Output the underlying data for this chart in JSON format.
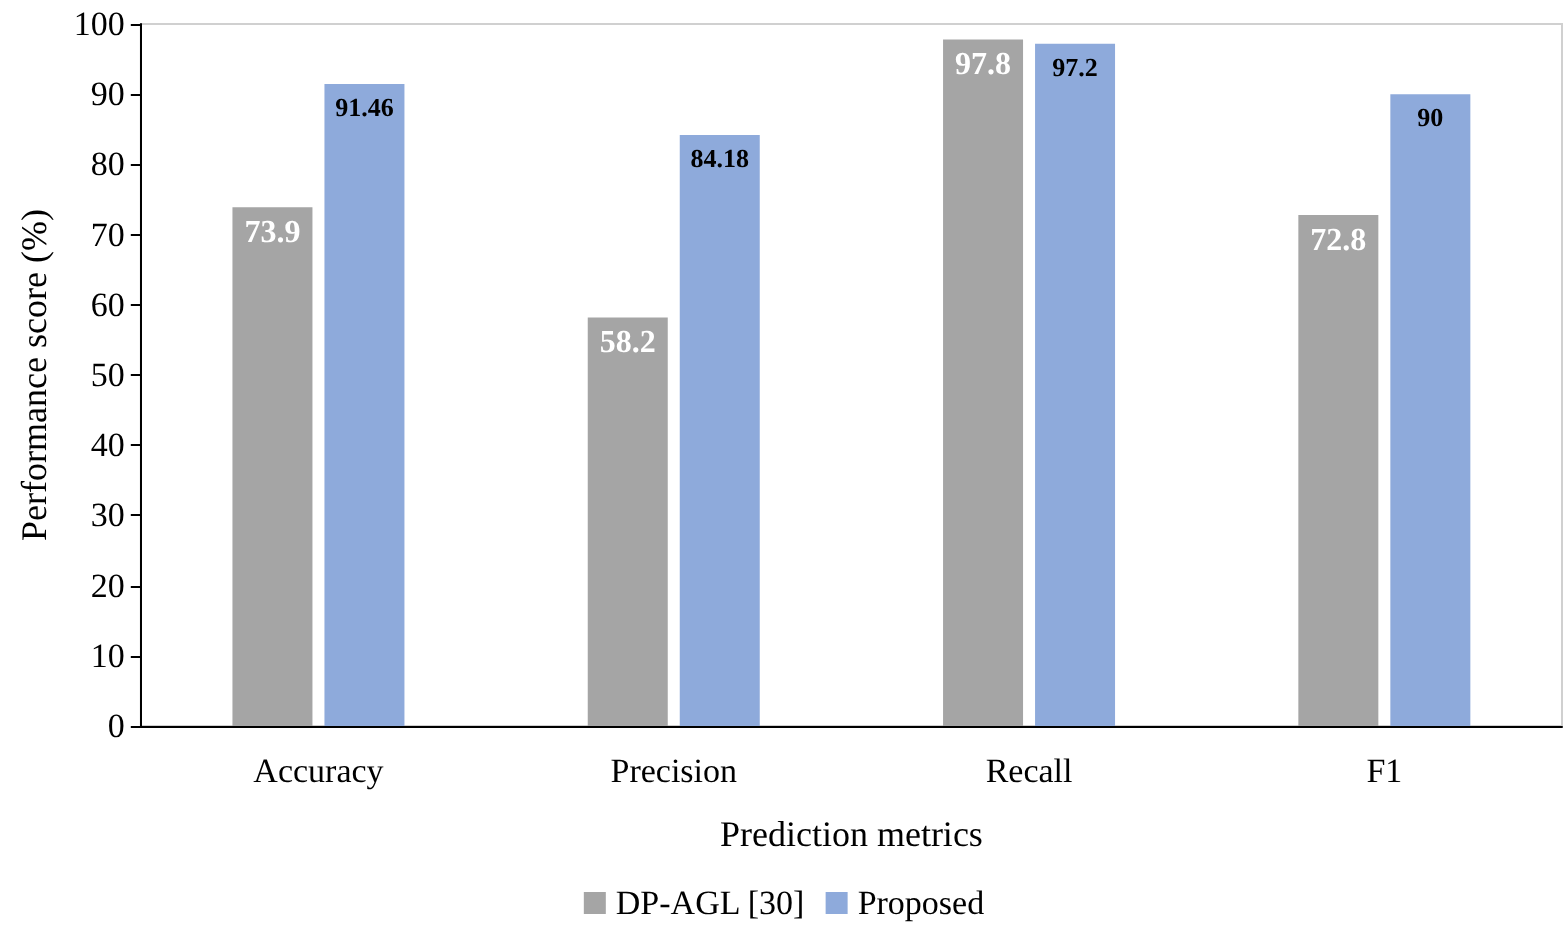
{
  "chart_data": {
    "type": "bar",
    "xlabel": "Prediction metrics",
    "ylabel": "Performance score (%)",
    "categories": [
      "Accuracy",
      "Precision",
      "Recall",
      "F1"
    ],
    "series": [
      {
        "name": "DP-AGL [30]",
        "color": "#a5a5a5",
        "values": [
          73.9,
          58.2,
          97.8,
          72.8
        ]
      },
      {
        "name": "Proposed",
        "color": "#8eaadb",
        "values": [
          91.46,
          84.18,
          97.2,
          90
        ]
      }
    ],
    "ylim": [
      0,
      100
    ],
    "yticks": [
      0,
      10,
      20,
      30,
      40,
      50,
      60,
      70,
      80,
      90,
      100
    ],
    "grid": false,
    "legend": "bottom",
    "data_labels": true
  }
}
